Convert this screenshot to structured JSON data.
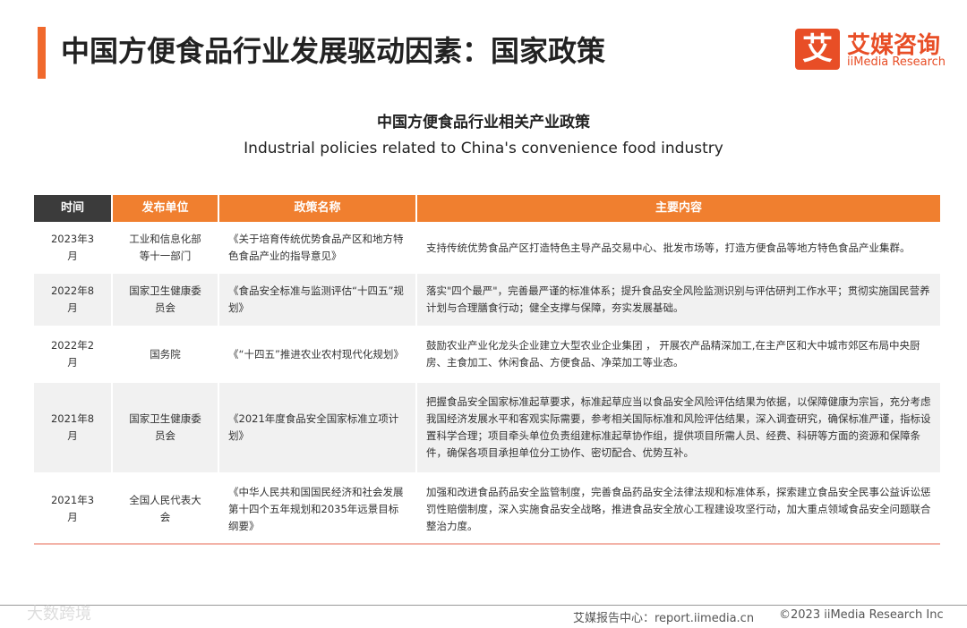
{
  "header": {
    "title": "中国方便食品行业发展驱动因素：国家政策",
    "logo_icon": "艾",
    "logo_name": "艾媒咨询",
    "logo_en": "iiMedia Research"
  },
  "subtitle": {
    "zh": "中国方便食品行业相关产业政策",
    "en": "Industrial policies related to China's convenience food industry"
  },
  "table": {
    "columns": [
      "时间",
      "发布单位",
      "政策名称",
      "主要内容"
    ],
    "rows": [
      [
        "2023年3月",
        "工业和信息化部等十一部门",
        "《关于培育传统优势食品产区和地方特色食品产业的指导意见》",
        "支持传统优势食品产区打造特色主导产品交易中心、批发市场等，打造方便食品等地方特色食品产业集群。"
      ],
      [
        "2022年8月",
        "国家卫生健康委员会",
        "《食品安全标准与监测评估“十四五”规划》",
        "落实\"四个最严\"，完善最严谨的标准体系；提升食品安全风险监测识别与评估研判工作水平；贯彻实施国民营养计划与合理膳食行动；健全支撑与保障，夯实发展基础。"
      ],
      [
        "2022年2月",
        "国务院",
        "《“十四五”推进农业农村现代化规划》",
        "鼓励农业产业化龙头企业建立大型农业企业集团 ， 开展农产品精深加工,在主产区和大中城市郊区布局中央厨房、主食加工、休闲食品、方便食品、净菜加工等业态。"
      ],
      [
        "2021年8月",
        "国家卫生健康委员会",
        "《2021年度食品安全国家标准立项计划》",
        "把握食品安全国家标准起草要求，标准起草应当以食品安全风险评估结果为依据，以保障健康为宗旨，充分考虑我国经济发展水平和客观实际需要，参考相关国际标准和风险评估结果，深入调查研究，确保标准严谨，指标设置科学合理；项目牵头单位负责组建标准起草协作组，提供项目所需人员、经费、科研等方面的资源和保障条件，确保各项目承担单位分工协作、密切配合、优势互补。"
      ],
      [
        "2021年3月",
        "全国人民代表大会",
        "《中华人民共和国国民经济和社会发展第十四个五年规划和2035年远景目标纲要》",
        "加强和改进食品药品安全监管制度，完善食品药品安全法律法规和标准体系，探索建立食品安全民事公益诉讼惩罚性赔偿制度，深入实施食品安全战略，推进食品安全放心工程建设攻坚行动，加大重点领域食品安全问题联合整治力度。"
      ]
    ]
  },
  "footer": {
    "source": "艾媒报告中心：report.iimedia.cn",
    "copyright": "©2023  iiMedia Research Inc",
    "watermark": "大数跨境"
  }
}
